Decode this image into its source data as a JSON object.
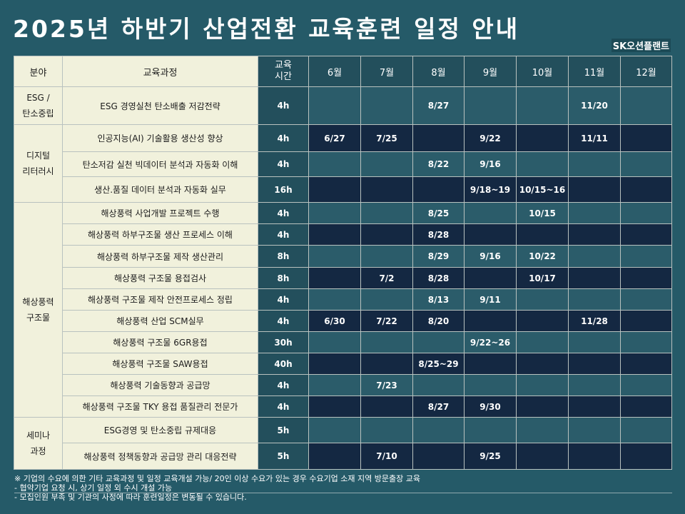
{
  "title": "2025년 하반기 산업전환 교육훈련 일정 안내",
  "brand": "SK오션플랜트",
  "headers": {
    "category": "분야",
    "course": "교육과정",
    "hours_line1": "교육",
    "hours_line2": "시간",
    "months": [
      "6월",
      "7월",
      "8월",
      "9월",
      "10월",
      "11월",
      "12월"
    ]
  },
  "categories": [
    {
      "line1": "ESG /",
      "line2": "탄소중립"
    },
    {
      "line1": "디지털",
      "line2": "리터러시"
    },
    {
      "line1": "해상풍력",
      "line2": "구조물"
    },
    {
      "line1": "세미나",
      "line2": "과정"
    }
  ],
  "rows": [
    {
      "course": "ESG 경영실천 탄소배출 저감전략",
      "hours": "4h",
      "dates": [
        "",
        "",
        "8/27",
        "",
        "",
        "11/20",
        ""
      ]
    },
    {
      "course": "인공지능(AI) 기술활용 생산성 향상",
      "hours": "4h",
      "dates": [
        "6/27",
        "7/25",
        "",
        "9/22",
        "",
        "11/11",
        ""
      ]
    },
    {
      "course": "탄소저감 실천 빅데이터 분석과 자동화 이해",
      "hours": "4h",
      "dates": [
        "",
        "",
        "8/22",
        "9/16",
        "",
        "",
        ""
      ]
    },
    {
      "course": "생산.품질 데이터 분석과 자동화 실무",
      "hours": "16h",
      "dates": [
        "",
        "",
        "",
        "9/18~19",
        "10/15~16",
        "",
        ""
      ]
    },
    {
      "course": "해상풍력 사업개발 프로젝트 수행",
      "hours": "4h",
      "dates": [
        "",
        "",
        "8/25",
        "",
        "10/15",
        "",
        ""
      ]
    },
    {
      "course": "해상풍력 하부구조물 생산 프로세스 이해",
      "hours": "4h",
      "dates": [
        "",
        "",
        "8/28",
        "",
        "",
        "",
        ""
      ]
    },
    {
      "course": "해상풍력 하부구조물 제작 생산관리",
      "hours": "8h",
      "dates": [
        "",
        "",
        "8/29",
        "9/16",
        "10/22",
        "",
        ""
      ]
    },
    {
      "course": "해상풍력 구조물 용접검사",
      "hours": "8h",
      "dates": [
        "",
        "7/2",
        "8/28",
        "",
        "10/17",
        "",
        ""
      ]
    },
    {
      "course": "해상풍력 구조물 제작 안전프로세스 정립",
      "hours": "4h",
      "dates": [
        "",
        "",
        "8/13",
        "9/11",
        "",
        "",
        ""
      ]
    },
    {
      "course": "해상풍력 산업 SCM실무",
      "hours": "4h",
      "dates": [
        "6/30",
        "7/22",
        "8/20",
        "",
        "",
        "11/28",
        ""
      ]
    },
    {
      "course": "해상풍력 구조물 6GR용접",
      "hours": "30h",
      "dates": [
        "",
        "",
        "",
        "9/22~26",
        "",
        "",
        ""
      ]
    },
    {
      "course": "해상풍력 구조물 SAW용접",
      "hours": "40h",
      "dates": [
        "",
        "",
        "8/25~29",
        "",
        "",
        "",
        ""
      ]
    },
    {
      "course": "해상풍력 기술동향과 공급망",
      "hours": "4h",
      "dates": [
        "",
        "7/23",
        "",
        "",
        "",
        "",
        ""
      ]
    },
    {
      "course": "해상풍력 구조물 TKY 용접 품질관리 전문가",
      "hours": "4h",
      "dates": [
        "",
        "",
        "8/27",
        "9/30",
        "",
        "",
        ""
      ]
    },
    {
      "course": "ESG경영 및 탄소중립 규제대응",
      "hours": "5h",
      "dates": [
        "",
        "",
        "",
        "",
        "",
        "",
        ""
      ]
    },
    {
      "course": "해상풍력 정책동향과 공급망 관리 대응전략",
      "hours": "5h",
      "dates": [
        "",
        "7/10",
        "",
        "9/25",
        "",
        "",
        ""
      ]
    }
  ],
  "notes": [
    "※ 기업의 수요에 의한 기타 교육과정 및 일정 교육개설 가능/ 20인 이상 수요가 있는 경우 수요기업 소재 지역 방문출장 교육",
    "- 협약기업 요청 시, 상기 일정 외 수시 개설 가능",
    "- 모집인원 부족 및 기관의 사정에 따라 훈련일정은 변동될 수 있습니다."
  ],
  "colors": {
    "background": "#255a68",
    "cream": "#f1f1dc",
    "navy_row": "#142842",
    "teal_row": "#2b5c6a"
  }
}
